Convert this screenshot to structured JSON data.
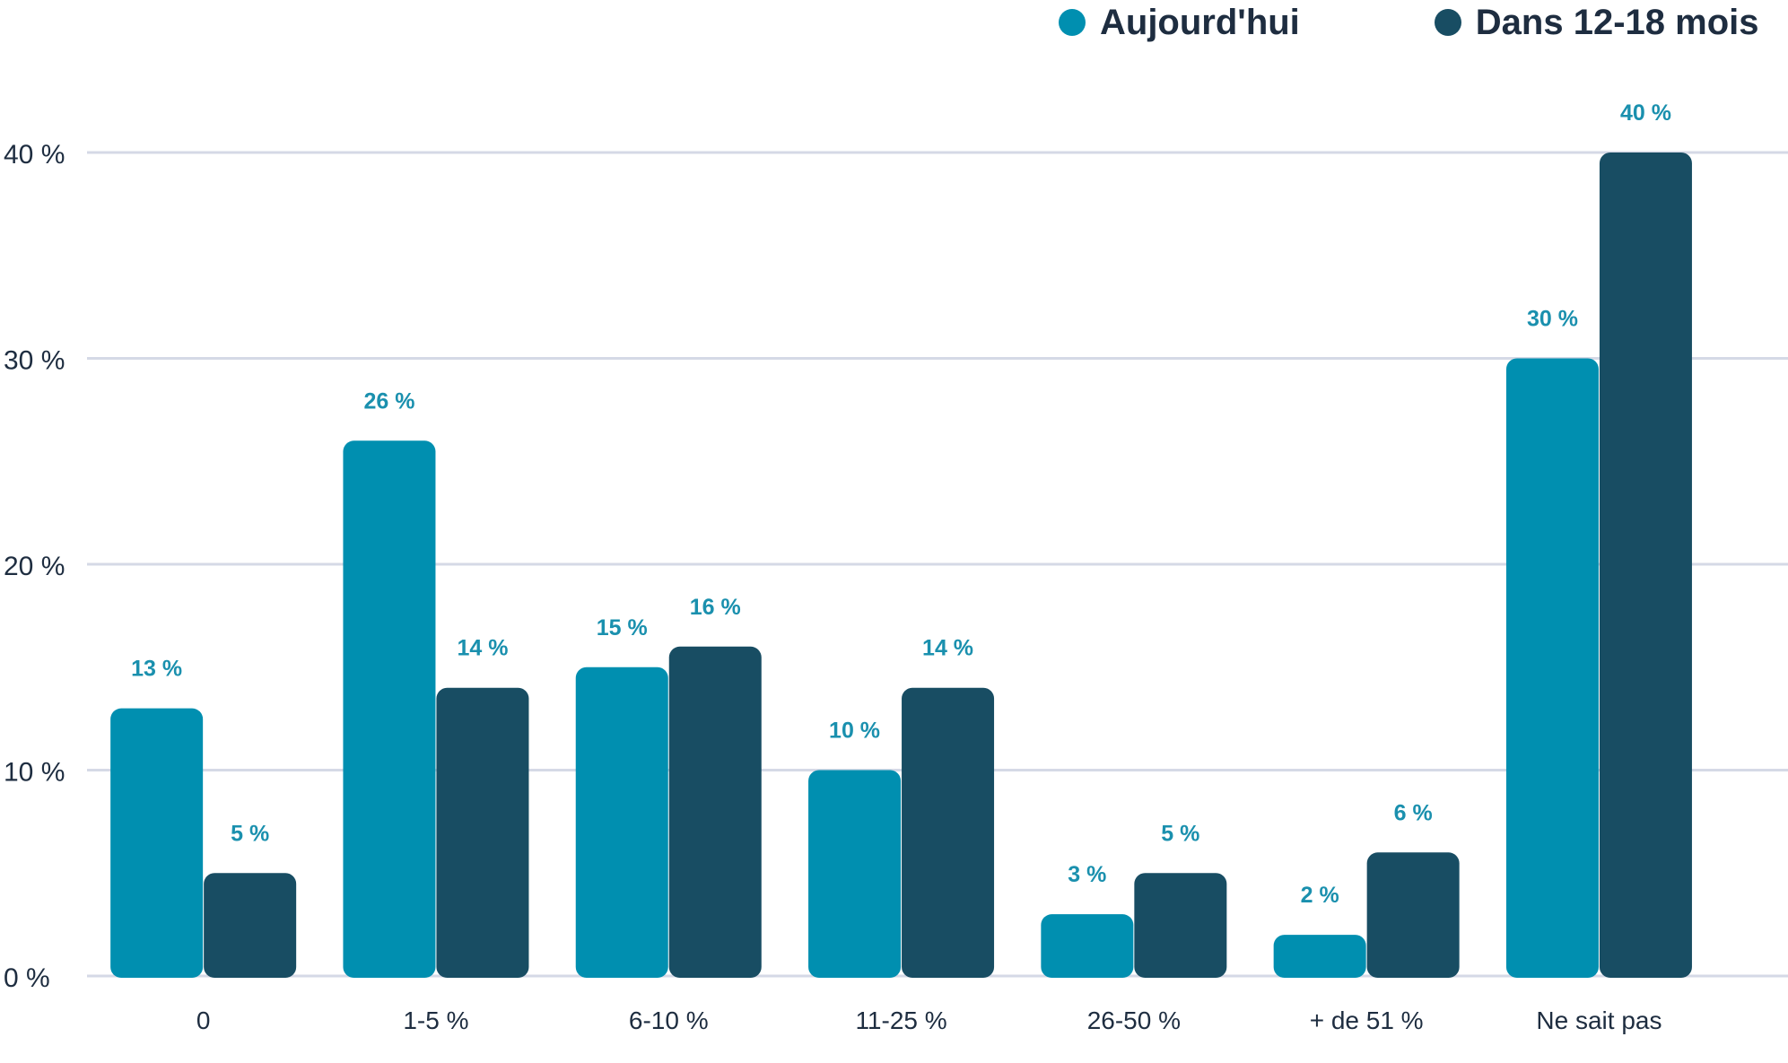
{
  "legend": {
    "series0": "Aujourd'hui",
    "series1": "Dans 12-18 mois"
  },
  "colors": {
    "series0": "#008fb0",
    "series1": "#184d63",
    "grid": "#d5d9e6",
    "axis_text": "#1e2d40",
    "label_text": "#1a90ae"
  },
  "chart_data": {
    "type": "bar",
    "categories": [
      "0",
      "1-5 %",
      "6-10 %",
      "11-25 %",
      "26-50 %",
      "+ de 51 %",
      "Ne sait pas"
    ],
    "series": [
      {
        "name": "Aujourd'hui",
        "values": [
          13,
          26,
          15,
          10,
          3,
          2,
          30
        ],
        "labels": [
          "13 %",
          "26 %",
          "15 %",
          "10 %",
          "3 %",
          "2 %",
          "30 %"
        ]
      },
      {
        "name": "Dans 12-18 mois",
        "values": [
          5,
          14,
          16,
          14,
          5,
          6,
          40
        ],
        "labels": [
          "5 %",
          "14 %",
          "16 %",
          "14 %",
          "5 %",
          "6 %",
          "40 %"
        ]
      }
    ],
    "yticks": [
      0,
      10,
      20,
      30,
      40
    ],
    "ytick_labels": [
      "0 %",
      "10 %",
      "20 %",
      "30 %",
      "40 %"
    ],
    "ylim": [
      0,
      40
    ],
    "title": "",
    "xlabel": "",
    "ylabel": "",
    "grid": true,
    "legend_position": "top-right"
  }
}
